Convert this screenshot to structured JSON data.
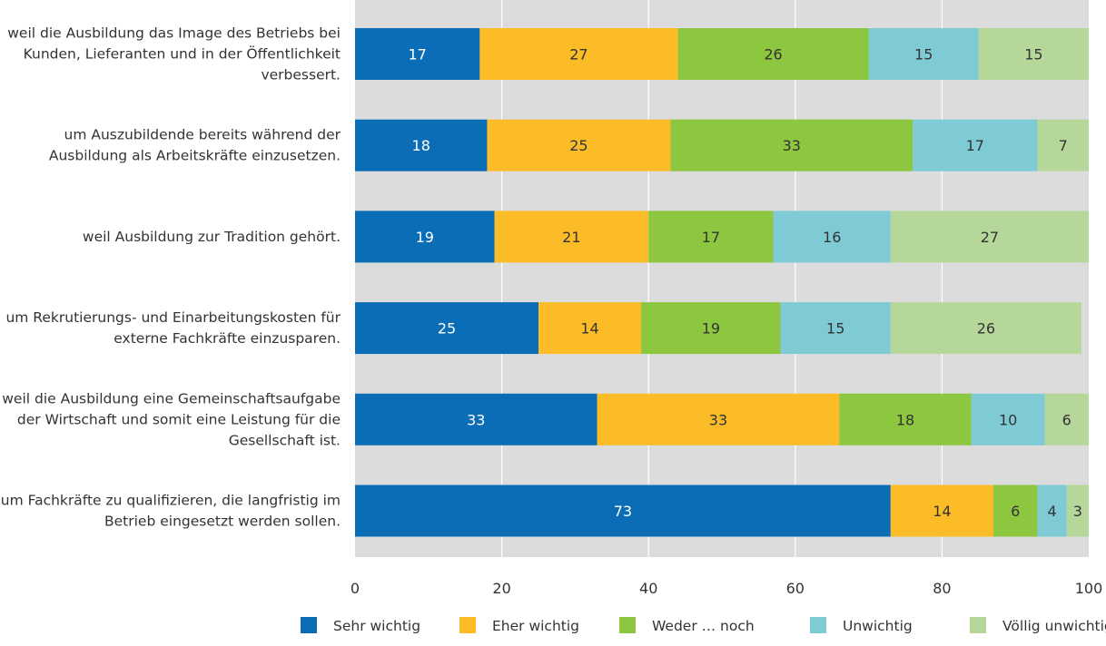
{
  "chart_data": {
    "type": "bar",
    "orientation": "horizontal",
    "stacked": true,
    "categories": [
      "weil die Ausbildung das Image des Betriebs bei Kunden, Lieferanten und in der Öffentlichkeit verbessert.",
      "um Auszubildende bereits während der Ausbildung als Arbeitskräfte einzusetzen.",
      "weil Ausbildung zur Tradition gehört.",
      "um Rekrutierungs- und Einarbeitungskosten für externe Fachkräfte einzusparen.",
      "weil die Ausbildung eine Gemeinschaftsaufgabe der Wirtschaft und somit eine Leistung für die Gesellschaft ist.",
      "um Fachkräfte zu qualifizieren, die langfristig im Betrieb eingesetzt werden sollen."
    ],
    "category_lines": [
      [
        "weil die Ausbildung das Image des Betriebs bei",
        "Kunden, Lieferanten und in der Öffentlichkeit",
        "verbessert."
      ],
      [
        "um Auszubildende bereits während der",
        "Ausbildung als Arbeitskräfte einzusetzen."
      ],
      [
        "weil Ausbildung zur Tradition gehört."
      ],
      [
        "um Rekrutierungs- und Einarbeitungskosten für",
        "externe Fachkräfte einzusparen."
      ],
      [
        "weil die Ausbildung eine Gemeinschaftsaufgabe",
        "der Wirtschaft und somit eine Leistung für die",
        "Gesellschaft ist."
      ],
      [
        "um Fachkräfte zu qualifizieren, die langfristig im",
        "Betrieb eingesetzt werden sollen."
      ]
    ],
    "series": [
      {
        "name": "Sehr wichtig",
        "color": "#0a6db6",
        "label_color": "#ffffff",
        "values": [
          17,
          18,
          19,
          25,
          33,
          73
        ]
      },
      {
        "name": "Eher wichtig",
        "color": "#fbbc28",
        "label_color": "#333333",
        "values": [
          27,
          25,
          21,
          14,
          33,
          14
        ]
      },
      {
        "name": "Weder … noch",
        "color": "#8dc63f",
        "label_color": "#333333",
        "values": [
          26,
          33,
          17,
          19,
          18,
          6
        ]
      },
      {
        "name": "Unwichtig",
        "color": "#7ecbd6",
        "label_color": "#333333",
        "values": [
          15,
          17,
          16,
          15,
          10,
          4
        ]
      },
      {
        "name": "Völlig unwichtig",
        "color": "#b6d79a",
        "label_color": "#333333",
        "values": [
          15,
          7,
          27,
          26,
          6,
          3
        ]
      }
    ],
    "xlim": [
      0,
      100
    ],
    "xticks": [
      0,
      20,
      40,
      60,
      80,
      100
    ],
    "grid": true,
    "legend_position": "bottom",
    "plot_background": "#dcdcdc"
  }
}
